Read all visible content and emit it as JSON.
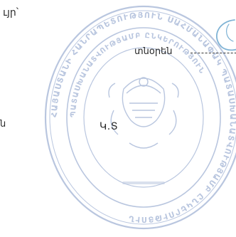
{
  "document": {
    "top_text": "ւյր՝",
    "director_label": "տնօրեն",
    "fragment_left": "ն",
    "seal_placeholder": "Կ.Տ"
  },
  "stamp": {
    "color": "#b9c6df",
    "ring_text_outer": "ՀԱՅԱՍՏԱՆԻ ՀԱՆՐԱՊԵՏՈՒԹՅՈՒՆ ՍԱՀՄԱՆԱՓԱԿ ՊԱՏԱՍԽԱՆԱՏՎՈՒԹՅԱՄԲ ԸՆԿԵՐՈՒԹՅՈՒՆ",
    "ring_text_inner": "ՊԱՏԱՍԽԱՆԱՏՎՈՒԹՅԱՄԲ ԸՆԿԵՐՈՒԹՅՈՒՆ"
  },
  "signature": {
    "color": "#7fb3d5"
  }
}
